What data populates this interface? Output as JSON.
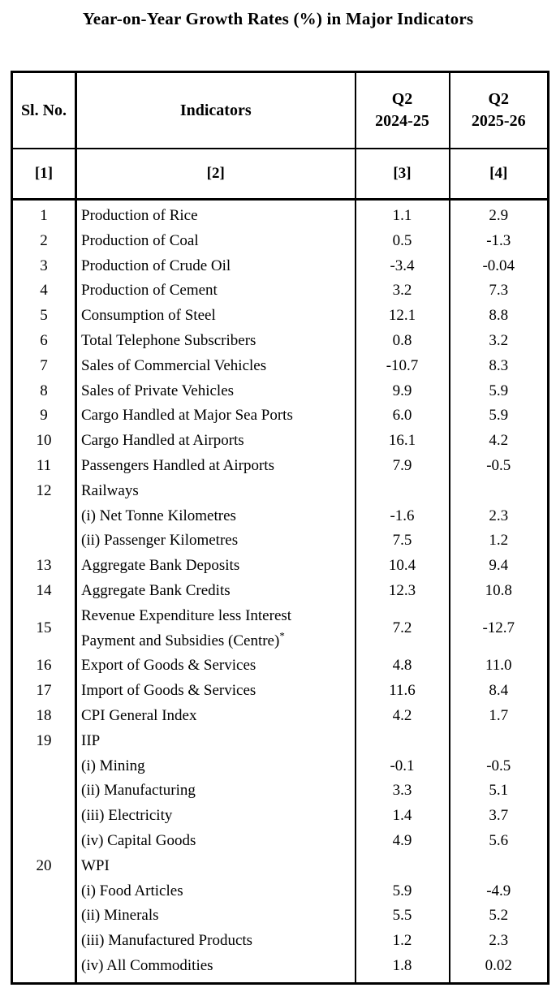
{
  "title": "Year-on-Year Growth Rates (%) in Major Indicators",
  "table": {
    "columns": [
      {
        "key": "sl",
        "header": "Sl. No.",
        "index_label": "[1]"
      },
      {
        "key": "indicator",
        "header": "Indicators",
        "index_label": "[2]"
      },
      {
        "key": "q2_2024_25",
        "header_lines": [
          "Q2",
          "2024-25"
        ],
        "index_label": "[3]"
      },
      {
        "key": "q2_2025_26",
        "header_lines": [
          "Q2",
          "2025-26"
        ],
        "index_label": "[4]"
      }
    ],
    "rows": [
      {
        "sl": "1",
        "indicator": "Production of Rice",
        "q2_2024_25": "1.1",
        "q2_2025_26": "2.9"
      },
      {
        "sl": "2",
        "indicator": "Production of Coal",
        "q2_2024_25": "0.5",
        "q2_2025_26": "-1.3"
      },
      {
        "sl": "3",
        "indicator": "Production of Crude Oil",
        "q2_2024_25": "-3.4",
        "q2_2025_26": "-0.04"
      },
      {
        "sl": "4",
        "indicator": "Production of Cement",
        "q2_2024_25": "3.2",
        "q2_2025_26": "7.3"
      },
      {
        "sl": "5",
        "indicator": "Consumption of Steel",
        "q2_2024_25": "12.1",
        "q2_2025_26": "8.8"
      },
      {
        "sl": "6",
        "indicator": "Total Telephone Subscribers",
        "q2_2024_25": "0.8",
        "q2_2025_26": "3.2"
      },
      {
        "sl": "7",
        "indicator": "Sales of Commercial Vehicles",
        "q2_2024_25": "-10.7",
        "q2_2025_26": "8.3"
      },
      {
        "sl": "8",
        "indicator": "Sales of Private Vehicles",
        "q2_2024_25": "9.9",
        "q2_2025_26": "5.9"
      },
      {
        "sl": "9",
        "indicator": "Cargo Handled at Major Sea Ports",
        "q2_2024_25": "6.0",
        "q2_2025_26": "5.9"
      },
      {
        "sl": "10",
        "indicator": "Cargo Handled at Airports",
        "q2_2024_25": "16.1",
        "q2_2025_26": "4.2"
      },
      {
        "sl": "11",
        "indicator": "Passengers Handled at Airports",
        "q2_2024_25": "7.9",
        "q2_2025_26": "-0.5"
      },
      {
        "sl": "12",
        "indicator": "Railways",
        "q2_2024_25": "",
        "q2_2025_26": ""
      },
      {
        "sl": "",
        "indicator": "(i) Net Tonne Kilometres",
        "q2_2024_25": "-1.6",
        "q2_2025_26": "2.3"
      },
      {
        "sl": "",
        "indicator": "(ii) Passenger Kilometres",
        "q2_2024_25": "7.5",
        "q2_2025_26": "1.2"
      },
      {
        "sl": "13",
        "indicator": "Aggregate Bank Deposits",
        "q2_2024_25": "10.4",
        "q2_2025_26": "9.4"
      },
      {
        "sl": "14",
        "indicator": "Aggregate Bank Credits",
        "q2_2024_25": "12.3",
        "q2_2025_26": "10.8"
      },
      {
        "sl": "15",
        "indicator_lines": [
          "Revenue Expenditure less Interest",
          "Payment and Subsidies (Centre)"
        ],
        "indicator_superscript": "*",
        "q2_2024_25": "7.2",
        "q2_2025_26": "-12.7"
      },
      {
        "sl": "16",
        "indicator": "Export of Goods & Services",
        "q2_2024_25": "4.8",
        "q2_2025_26": "11.0"
      },
      {
        "sl": "17",
        "indicator": "Import of Goods & Services",
        "q2_2024_25": "11.6",
        "q2_2025_26": "8.4"
      },
      {
        "sl": "18",
        "indicator": "CPI General Index",
        "q2_2024_25": "4.2",
        "q2_2025_26": "1.7"
      },
      {
        "sl": "19",
        "indicator": "IIP",
        "q2_2024_25": "",
        "q2_2025_26": ""
      },
      {
        "sl": "",
        "indicator": "(i) Mining",
        "q2_2024_25": "-0.1",
        "q2_2025_26": "-0.5"
      },
      {
        "sl": "",
        "indicator": "(ii) Manufacturing",
        "q2_2024_25": "3.3",
        "q2_2025_26": "5.1"
      },
      {
        "sl": "",
        "indicator": "(iii) Electricity",
        "q2_2024_25": "1.4",
        "q2_2025_26": "3.7"
      },
      {
        "sl": "",
        "indicator": "(iv) Capital Goods",
        "q2_2024_25": "4.9",
        "q2_2025_26": "5.6"
      },
      {
        "sl": "20",
        "indicator": "WPI",
        "q2_2024_25": "",
        "q2_2025_26": ""
      },
      {
        "sl": "",
        "indicator": "(i) Food Articles",
        "q2_2024_25": "5.9",
        "q2_2025_26": "-4.9"
      },
      {
        "sl": "",
        "indicator": "(ii) Minerals",
        "q2_2024_25": "5.5",
        "q2_2025_26": "5.2"
      },
      {
        "sl": "",
        "indicator": "(iii) Manufactured Products",
        "q2_2024_25": "1.2",
        "q2_2025_26": "2.3"
      },
      {
        "sl": "",
        "indicator": "(iv) All Commodities",
        "q2_2024_25": "1.8",
        "q2_2025_26": "0.02"
      }
    ]
  }
}
